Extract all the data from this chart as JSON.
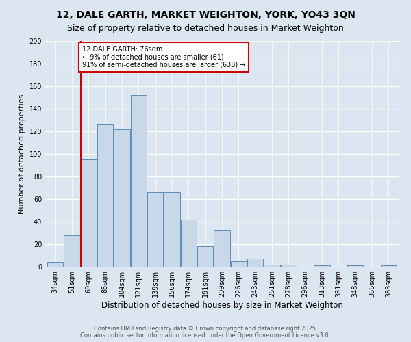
{
  "title": "12, DALE GARTH, MARKET WEIGHTON, YORK, YO43 3QN",
  "subtitle": "Size of property relative to detached houses in Market Weighton",
  "xlabel": "Distribution of detached houses by size in Market Weighton",
  "ylabel": "Number of detached properties",
  "categories": [
    "34sqm",
    "51sqm",
    "69sqm",
    "86sqm",
    "104sqm",
    "121sqm",
    "139sqm",
    "156sqm",
    "174sqm",
    "191sqm",
    "209sqm",
    "226sqm",
    "243sqm",
    "261sqm",
    "278sqm",
    "296sqm",
    "313sqm",
    "331sqm",
    "348sqm",
    "366sqm",
    "383sqm"
  ],
  "values": [
    4,
    28,
    95,
    126,
    122,
    152,
    66,
    66,
    42,
    18,
    33,
    5,
    7,
    2,
    2,
    0,
    1,
    0,
    1,
    0,
    1
  ],
  "bar_color": "#c8d8e8",
  "bar_edge_color": "#5b8db8",
  "background_color": "#dce6f0",
  "grid_color": "#ffffff",
  "annotation_line1": "12 DALE GARTH: 76sqm",
  "annotation_line2": "← 9% of detached houses are smaller (61)",
  "annotation_line3": "91% of semi-detached houses are larger (638) →",
  "annotation_box_color": "#ffffff",
  "annotation_box_edge_color": "#cc0000",
  "red_line_color": "#cc0000",
  "ylim": [
    0,
    200
  ],
  "yticks": [
    0,
    20,
    40,
    60,
    80,
    100,
    120,
    140,
    160,
    180,
    200
  ],
  "footer_text": "Contains HM Land Registry data © Crown copyright and database right 2025.\nContains public sector information licensed under the Open Government Licence v3.0.",
  "title_fontsize": 10,
  "subtitle_fontsize": 9,
  "xlabel_fontsize": 8.5,
  "ylabel_fontsize": 8,
  "tick_fontsize": 7,
  "annotation_fontsize": 7,
  "footer_fontsize": 6
}
